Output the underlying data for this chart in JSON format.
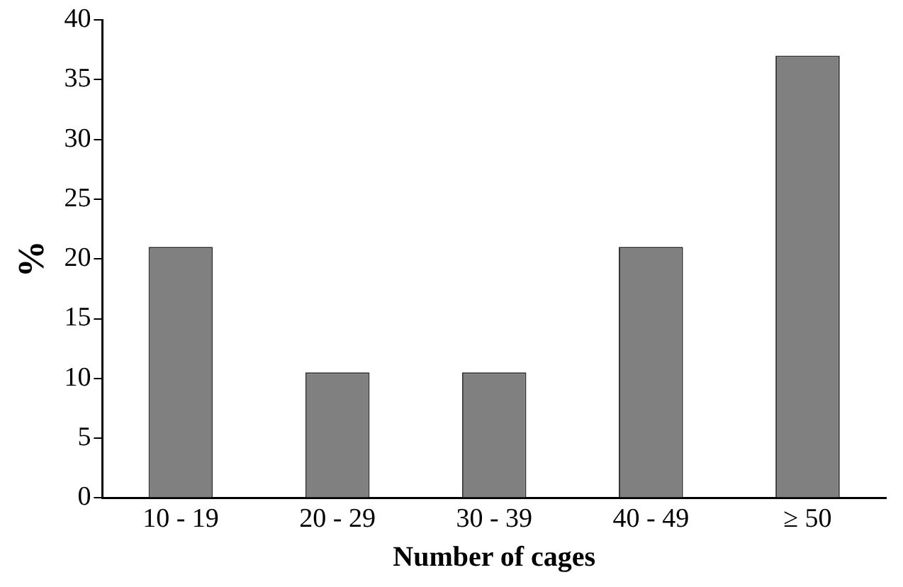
{
  "chart_data": {
    "type": "bar",
    "xlabel": "Number of cages",
    "ylabel": "%",
    "categories": [
      "10 - 19",
      "20 - 29",
      "30 - 39",
      "40 - 49",
      "≥ 50"
    ],
    "values": [
      21,
      10.5,
      10.5,
      21,
      37
    ],
    "color": "#808080",
    "ylim": [
      0,
      40
    ],
    "yticks": [
      0,
      5,
      10,
      15,
      20,
      25,
      30,
      35,
      40
    ],
    "grid": false,
    "legend": false
  }
}
